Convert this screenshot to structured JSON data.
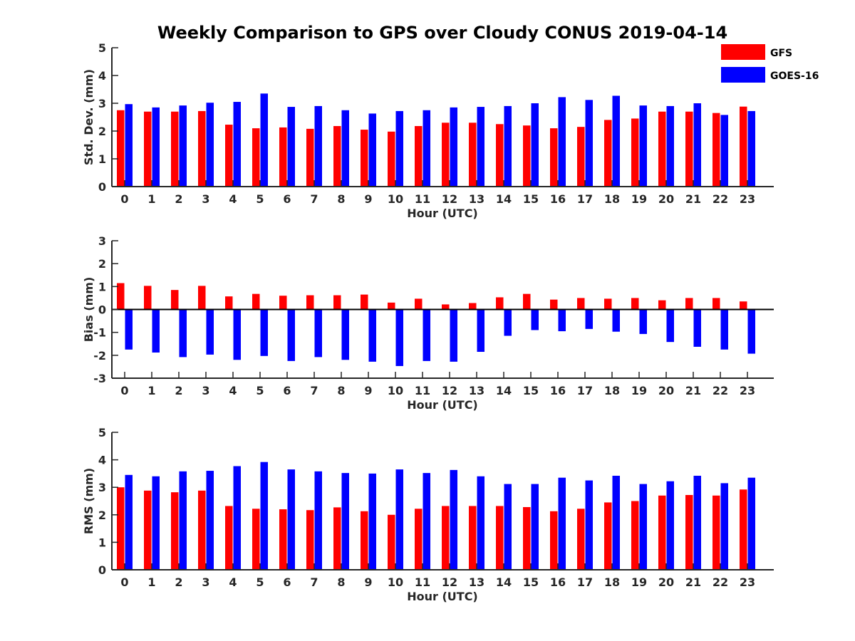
{
  "title": "Weekly Comparison to GPS over Cloudy CONUS 2019-04-14",
  "legend": {
    "placement": "top-right",
    "entries": [
      "GFS",
      "GOES-16"
    ]
  },
  "colors": {
    "GFS": "#ff0000",
    "GOES-16": "#0000ff",
    "axis": "#262626"
  },
  "chart_data": [
    {
      "type": "bar",
      "ylabel": "Std. Dev. (mm)",
      "xlabel": "Hour (UTC)",
      "ylim": [
        0,
        5
      ],
      "yticks": [
        0,
        1,
        2,
        3,
        4,
        5
      ],
      "categories": [
        "0",
        "1",
        "2",
        "3",
        "4",
        "5",
        "6",
        "7",
        "8",
        "9",
        "10",
        "11",
        "12",
        "13",
        "14",
        "15",
        "16",
        "17",
        "18",
        "19",
        "20",
        "21",
        "22",
        "23"
      ],
      "series": [
        {
          "name": "GFS",
          "values": [
            2.75,
            2.7,
            2.7,
            2.72,
            2.23,
            2.1,
            2.13,
            2.08,
            2.18,
            2.05,
            1.98,
            2.18,
            2.3,
            2.3,
            2.25,
            2.2,
            2.1,
            2.15,
            2.4,
            2.45,
            2.7,
            2.7,
            2.65,
            2.88
          ]
        },
        {
          "name": "GOES-16",
          "values": [
            2.97,
            2.85,
            2.92,
            3.02,
            3.05,
            3.35,
            2.87,
            2.9,
            2.75,
            2.63,
            2.72,
            2.75,
            2.85,
            2.87,
            2.9,
            3.0,
            3.22,
            3.12,
            3.27,
            2.92,
            2.9,
            3.0,
            2.58,
            2.72
          ]
        }
      ]
    },
    {
      "type": "bar",
      "ylabel": "Bias (mm)",
      "xlabel": "Hour (UTC)",
      "ylim": [
        -3,
        3
      ],
      "yticks": [
        -3,
        -2,
        -1,
        0,
        1,
        2,
        3
      ],
      "categories": [
        "0",
        "1",
        "2",
        "3",
        "4",
        "5",
        "6",
        "7",
        "8",
        "9",
        "10",
        "11",
        "12",
        "13",
        "14",
        "15",
        "16",
        "17",
        "18",
        "19",
        "20",
        "21",
        "22",
        "23"
      ],
      "series": [
        {
          "name": "GFS",
          "values": [
            1.15,
            1.03,
            0.85,
            1.03,
            0.57,
            0.68,
            0.6,
            0.62,
            0.62,
            0.65,
            0.3,
            0.47,
            0.22,
            0.28,
            0.53,
            0.68,
            0.43,
            0.5,
            0.47,
            0.5,
            0.4,
            0.5,
            0.5,
            0.35
          ]
        },
        {
          "name": "GOES-16",
          "values": [
            -1.75,
            -1.88,
            -2.08,
            -1.97,
            -2.2,
            -2.03,
            -2.25,
            -2.08,
            -2.2,
            -2.28,
            -2.47,
            -2.25,
            -2.28,
            -1.85,
            -1.15,
            -0.9,
            -0.95,
            -0.85,
            -0.97,
            -1.07,
            -1.42,
            -1.63,
            -1.75,
            -1.93
          ]
        }
      ]
    },
    {
      "type": "bar",
      "ylabel": "RMS (mm)",
      "xlabel": "Hour (UTC)",
      "ylim": [
        0,
        5
      ],
      "yticks": [
        0,
        1,
        2,
        3,
        4,
        5
      ],
      "categories": [
        "0",
        "1",
        "2",
        "3",
        "4",
        "5",
        "6",
        "7",
        "8",
        "9",
        "10",
        "11",
        "12",
        "13",
        "14",
        "15",
        "16",
        "17",
        "18",
        "19",
        "20",
        "21",
        "22",
        "23"
      ],
      "series": [
        {
          "name": "GFS",
          "values": [
            3.0,
            2.88,
            2.82,
            2.88,
            2.32,
            2.22,
            2.2,
            2.17,
            2.27,
            2.13,
            2.0,
            2.22,
            2.32,
            2.32,
            2.32,
            2.28,
            2.13,
            2.22,
            2.45,
            2.5,
            2.7,
            2.72,
            2.7,
            2.92
          ]
        },
        {
          "name": "GOES-16",
          "values": [
            3.45,
            3.4,
            3.58,
            3.6,
            3.77,
            3.92,
            3.65,
            3.58,
            3.52,
            3.5,
            3.65,
            3.52,
            3.63,
            3.4,
            3.12,
            3.12,
            3.35,
            3.25,
            3.42,
            3.12,
            3.22,
            3.42,
            3.15,
            3.35
          ]
        }
      ]
    }
  ]
}
